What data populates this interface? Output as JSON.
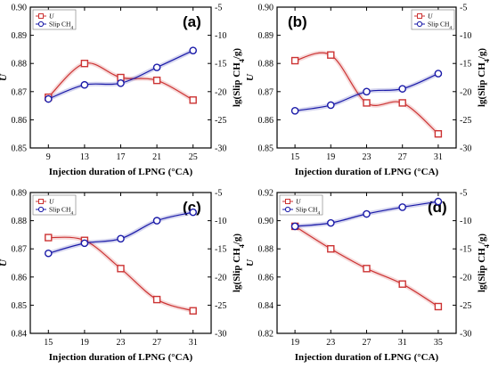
{
  "chart_data": [
    {
      "type": "line",
      "panel_label": "(a)",
      "xlabel": "Injection duration of LPNG (°CA)",
      "ylabel_left": "U",
      "ylabel_right": "lg(Slip CH4/g)",
      "x": [
        9,
        13,
        17,
        21,
        25
      ],
      "xlim": [
        7,
        27
      ],
      "x_ticks": [
        "9",
        "13",
        "17",
        "21",
        "25"
      ],
      "ylim_left": [
        0.85,
        0.9
      ],
      "y_ticks_left": [
        "0.85",
        "0.86",
        "0.87",
        "0.88",
        "0.89",
        "0.90"
      ],
      "ylim_right": [
        -30,
        -5
      ],
      "y_ticks_right": [
        "-30",
        "-25",
        "-20",
        "-15",
        "-10",
        "-5"
      ],
      "legend": {
        "placement": "top-left"
      },
      "series": [
        {
          "name": "U",
          "axis": "left",
          "color": "#cc3333",
          "marker": "square",
          "values": [
            0.868,
            0.88,
            0.875,
            0.874,
            0.867
          ]
        },
        {
          "name": "Slip CH4",
          "axis": "right",
          "color": "#1a1aa8",
          "marker": "circle",
          "values": [
            -21.3,
            -18.8,
            -18.5,
            -15.7,
            -12.7
          ]
        }
      ]
    },
    {
      "type": "line",
      "panel_label": "(b)",
      "xlabel": "Injection duration of LPNG (°CA)",
      "ylabel_left": "U",
      "ylabel_right": "lg(Slip CH4/g)",
      "x": [
        15,
        19,
        23,
        27,
        31
      ],
      "xlim": [
        13,
        33
      ],
      "x_ticks": [
        "15",
        "19",
        "23",
        "27",
        "31"
      ],
      "ylim_left": [
        0.85,
        0.9
      ],
      "y_ticks_left": [
        "0.85",
        "0.86",
        "0.87",
        "0.88",
        "0.89",
        "0.90"
      ],
      "ylim_right": [
        -30,
        -5
      ],
      "y_ticks_right": [
        "-30",
        "-25",
        "-20",
        "-15",
        "-10",
        "-5"
      ],
      "legend": {
        "placement": "top-right"
      },
      "series": [
        {
          "name": "U",
          "axis": "left",
          "color": "#cc3333",
          "marker": "square",
          "values": [
            0.881,
            0.883,
            0.866,
            0.866,
            0.855
          ]
        },
        {
          "name": "Slip CH4",
          "axis": "right",
          "color": "#1a1aa8",
          "marker": "circle",
          "values": [
            -23.4,
            -22.4,
            -20.0,
            -19.5,
            -16.8
          ]
        }
      ]
    },
    {
      "type": "line",
      "panel_label": "(c)",
      "xlabel": "Injection duration of LPNG (°CA)",
      "ylabel_left": "U",
      "ylabel_right": "lg(Slip CH4/g)",
      "x": [
        15,
        19,
        23,
        27,
        31
      ],
      "xlim": [
        13,
        33
      ],
      "x_ticks": [
        "15",
        "19",
        "23",
        "27",
        "31"
      ],
      "ylim_left": [
        0.84,
        0.89
      ],
      "y_ticks_left": [
        "0.84",
        "0.85",
        "0.86",
        "0.87",
        "0.88",
        "0.89"
      ],
      "ylim_right": [
        -30,
        -5
      ],
      "y_ticks_right": [
        "-30",
        "-25",
        "-20",
        "-15",
        "-10",
        "-5"
      ],
      "legend": {
        "placement": "top-left"
      },
      "series": [
        {
          "name": "U",
          "axis": "left",
          "color": "#cc3333",
          "marker": "square",
          "values": [
            0.874,
            0.873,
            0.863,
            0.852,
            0.848
          ]
        },
        {
          "name": "Slip CH4",
          "axis": "right",
          "color": "#1a1aa8",
          "marker": "circle",
          "values": [
            -15.8,
            -14.0,
            -13.2,
            -10.0,
            -8.5
          ]
        }
      ]
    },
    {
      "type": "line",
      "panel_label": "(d)",
      "xlabel": "Injection duration of LPNG (°CA)",
      "ylabel_left": "U",
      "ylabel_right": "lg(Slip CH4/g)",
      "x": [
        19,
        23,
        27,
        31,
        35
      ],
      "xlim": [
        17,
        37
      ],
      "x_ticks": [
        "19",
        "23",
        "27",
        "31",
        "35"
      ],
      "ylim_left": [
        0.82,
        0.92
      ],
      "y_ticks_left": [
        "0.82",
        "0.84",
        "0.86",
        "0.88",
        "0.90",
        "0.92"
      ],
      "ylim_right": [
        -30,
        -5
      ],
      "y_ticks_right": [
        "-30",
        "-25",
        "-20",
        "-15",
        "-10",
        "-5"
      ],
      "legend": {
        "placement": "top-left"
      },
      "series": [
        {
          "name": "U",
          "axis": "left",
          "color": "#cc3333",
          "marker": "square",
          "values": [
            0.896,
            0.88,
            0.866,
            0.855,
            0.839
          ]
        },
        {
          "name": "Slip CH4",
          "axis": "right",
          "color": "#1a1aa8",
          "marker": "circle",
          "values": [
            -11.0,
            -10.4,
            -8.8,
            -7.6,
            -6.6
          ]
        }
      ]
    }
  ]
}
